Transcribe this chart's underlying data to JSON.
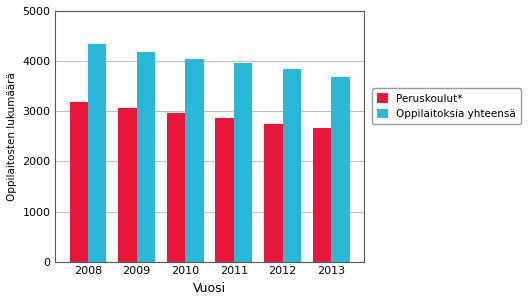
{
  "years": [
    2008,
    2009,
    2010,
    2011,
    2012,
    2013
  ],
  "peruskoulut": [
    3175,
    3060,
    2960,
    2855,
    2750,
    2665
  ],
  "oppilaitoksia": [
    4340,
    4175,
    4045,
    3960,
    3850,
    3680
  ],
  "bar_color_red": "#e8183c",
  "bar_color_blue": "#29b8d8",
  "xlabel": "Vuosi",
  "ylabel": "Oppilaitosten lukumäärä",
  "legend_red": "Peruskoulut*",
  "legend_blue": "Oppilaitoksia yhteensä",
  "ylim": [
    0,
    5000
  ],
  "yticks": [
    0,
    1000,
    2000,
    3000,
    4000,
    5000
  ],
  "bar_width": 0.38,
  "background_color": "#ffffff",
  "grid_color": "#c0c0c0",
  "spine_color": "#555555"
}
